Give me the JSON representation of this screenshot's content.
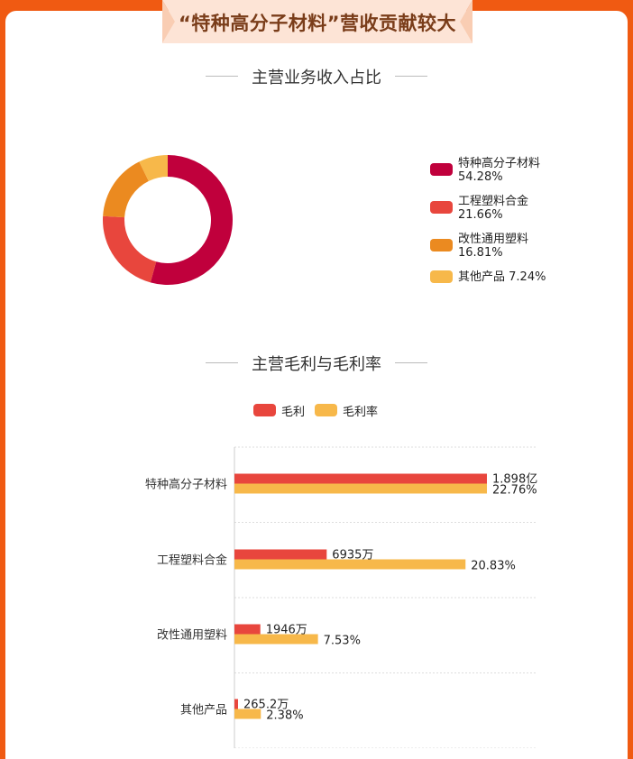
{
  "banner": {
    "title": "“特种高分子材料”营收贡献较大"
  },
  "colors": {
    "background": "#f05a12",
    "banner_fill": "#fde4d6",
    "title_text": "#7a3d1a"
  },
  "chart_data": [
    {
      "type": "pie",
      "title": "主营业务收入占比",
      "donut": true,
      "legend_position": "right",
      "slices": [
        {
          "name": "特种高分子材料",
          "value": 54.28,
          "label": "54.28%",
          "color": "#c0003c"
        },
        {
          "name": "工程塑料合金",
          "value": 21.66,
          "label": "21.66%",
          "color": "#e8463d"
        },
        {
          "name": "改性通用塑料",
          "value": 16.81,
          "label": "16.81%",
          "color": "#eb8a20"
        },
        {
          "name": "其他产品",
          "value": 7.24,
          "label": "7.24%",
          "color": "#f7b84a"
        }
      ]
    },
    {
      "type": "bar",
      "orientation": "horizontal",
      "title": "主营毛利与毛利率",
      "legend_position": "top",
      "grid": true,
      "categories": [
        "特种高分子材料",
        "工程塑料合金",
        "改性通用塑料",
        "其他产品"
      ],
      "series": [
        {
          "name": "毛利",
          "color": "#e8463d",
          "values": [
            18980,
            6935,
            1946,
            265.2
          ],
          "unit": "万元",
          "labels": [
            "1.898亿",
            "6935万",
            "1946万",
            "265.2万"
          ]
        },
        {
          "name": "毛利率",
          "color": "#f7b84a",
          "values": [
            22.76,
            20.83,
            7.53,
            2.38
          ],
          "unit": "%",
          "labels": [
            "22.76%",
            "20.83%",
            "7.53%",
            "2.38%"
          ]
        }
      ]
    }
  ]
}
